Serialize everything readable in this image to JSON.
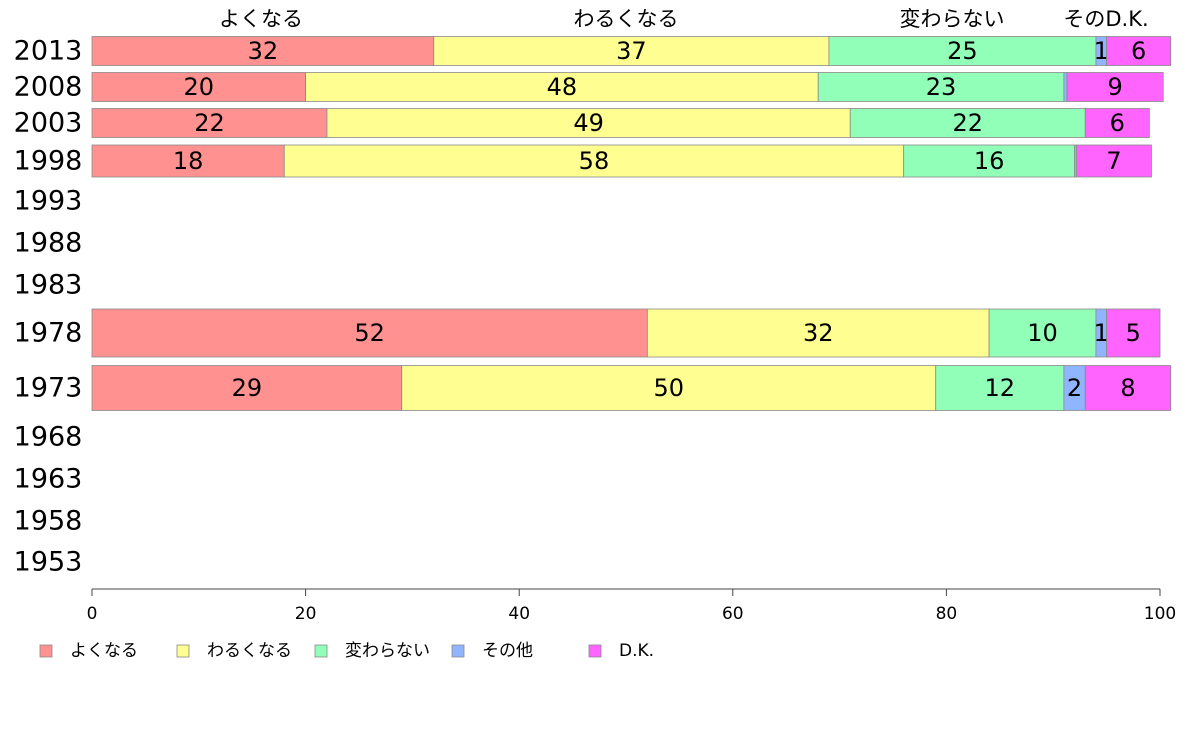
{
  "chart_data": {
    "type": "bar",
    "orientation": "horizontal",
    "stacked": true,
    "categories": [
      "2013",
      "2008",
      "2003",
      "1998",
      "1993",
      "1988",
      "1983",
      "1978",
      "1973",
      "1968",
      "1963",
      "1958",
      "1953"
    ],
    "series": [
      {
        "name": "よくなる",
        "color": "#ff9191",
        "values": [
          32,
          20,
          22,
          18,
          null,
          null,
          null,
          52,
          29,
          null,
          null,
          null,
          null
        ]
      },
      {
        "name": "わるくなる",
        "color": "#ffff91",
        "values": [
          37,
          48,
          49,
          58,
          null,
          null,
          null,
          32,
          50,
          null,
          null,
          null,
          null
        ]
      },
      {
        "name": "変わらない",
        "color": "#91ffb8",
        "values": [
          25,
          23,
          22,
          16,
          null,
          null,
          null,
          10,
          12,
          null,
          null,
          null,
          null
        ]
      },
      {
        "name": "その他",
        "color": "#91b4ff",
        "values": [
          1,
          0.3,
          0,
          0.2,
          null,
          null,
          null,
          1,
          2,
          null,
          null,
          null,
          null
        ]
      },
      {
        "name": "D.K.",
        "color": "#ff64ff",
        "values": [
          6,
          9,
          6,
          7,
          null,
          null,
          null,
          5,
          8,
          null,
          null,
          null,
          null
        ]
      }
    ],
    "data_labels": [
      [
        "32",
        "37",
        "25",
        "1",
        "6"
      ],
      [
        "20",
        "48",
        "23",
        "",
        "9"
      ],
      [
        "22",
        "49",
        "22",
        "",
        "6"
      ],
      [
        "18",
        "58",
        "16",
        "",
        "7"
      ],
      [],
      [],
      [],
      [
        "52",
        "32",
        "10",
        "1",
        "5"
      ],
      [
        "29",
        "50",
        "12",
        "2",
        "8"
      ],
      [],
      [],
      [],
      []
    ],
    "top_labels": [
      "よくなる",
      "わるくなる",
      "変わらない",
      "そのD.K."
    ],
    "xlim": [
      0,
      100
    ],
    "xticks": [
      0,
      20,
      40,
      60,
      80,
      100
    ],
    "legend_position": "bottom-left",
    "grid": false
  }
}
